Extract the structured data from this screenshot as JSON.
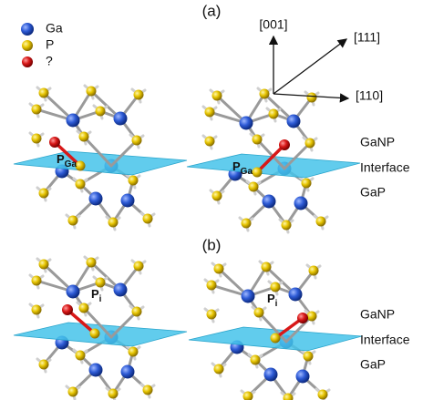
{
  "legend": [
    {
      "label": "Ga"
    },
    {
      "label": "P"
    },
    {
      "label": "?"
    }
  ],
  "panel_a": {
    "label": "(a)",
    "directions": [
      "[001]",
      "[111]",
      "[110]"
    ],
    "layers": [
      "GaNP",
      "Interface",
      "GaP"
    ],
    "sites": [
      {
        "main": "P",
        "sub": "Ga"
      },
      {
        "main": "P",
        "sub": "Ga"
      }
    ]
  },
  "panel_b": {
    "label": "(b)",
    "layers": [
      "GaNP",
      "Interface",
      "GaP"
    ],
    "sites": [
      {
        "main": "P",
        "sub": "i"
      },
      {
        "main": "P",
        "sub": "i"
      }
    ]
  }
}
